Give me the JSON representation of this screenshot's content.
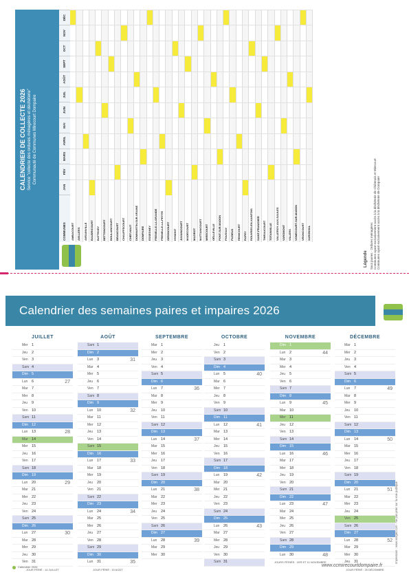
{
  "collecte": {
    "title": "CALENDRIER DE COLLECTE 2026",
    "subtitle": "Service \"collecte des ordures ménagères et déchèterie\"",
    "org": "Communauté de Communes Mirecourt Dompaire",
    "col_communes": "COMMUNES",
    "col_headers": [
      "JAN",
      "FÉV",
      "MARS",
      "AVRIL",
      "MAI",
      "JUIN",
      "JUIL",
      "AOÛT",
      "SEPT",
      "OCT",
      "NOV",
      "DÉC"
    ],
    "legend_title": "Légende",
    "legend_items": [
      "Sacs jaunes",
      "Ordures ménagères"
    ],
    "note1": "Communes ayant exclusivement accès à la déchèterie de Châtenois et Mirecourt",
    "note2": "Communes ayant exclusivement accès à la déchèterie de Dompaire",
    "communes": [
      "AMBACOURT",
      "AVILLERS",
      "AVRAINVILLE",
      "BAUDRICOURT",
      "BATTEXEY",
      "BETTONCOURT",
      "BOULAINCOURT",
      "BRANCOURT",
      "CHAUFFECOURT",
      "CHEF-HAUT",
      "DOMMARTIN-SUR-VRAINE",
      "DOMPAIRE",
      "ESSEGNEY",
      "FRENELLE-LA-GRANDE",
      "FRENELLE-LA-PETITE",
      "GIRONCOURT",
      "HYMONT",
      "JUVAINCOURT",
      "MADECOURT",
      "MAZIROT",
      "MATTAINCOURT",
      "MIRECOURT",
      "OËLLEVILLE",
      "PONT-SUR-MADON",
      "POUSSAY",
      "PUZIEUX",
      "REMICOURT",
      "RAPEY",
      "ROUVRES-EN-XAINTOIS",
      "SAINT-PRANCHER",
      "THIRAUCOURT",
      "TOTAINVILLE",
      "VALLEROY-AUX-SAULES",
      "VAROMONT",
      "VILLERS",
      "VOMECOURT-SUR-MADON",
      "VRONCOURT",
      "XARONVAL"
    ],
    "yellow_pattern": [
      3,
      7,
      11,
      2,
      9,
      5,
      1,
      10,
      6,
      4,
      8,
      0
    ]
  },
  "calendar": {
    "title": "Calendrier des semaines paires et impaires 2026",
    "months": [
      {
        "name": "JUILLET",
        "start": 3,
        "days": 31,
        "foot": "JOUR FÉRIÉ : 14 JUILLET"
      },
      {
        "name": "AOÛT",
        "start": 6,
        "days": 31,
        "foot": "JOUR FÉRIÉ : 15 AOÛT"
      },
      {
        "name": "SEPTEMBRE",
        "start": 2,
        "days": 30,
        "foot": ""
      },
      {
        "name": "OCTOBRE",
        "start": 4,
        "days": 31,
        "foot": ""
      },
      {
        "name": "NOVEMBRE",
        "start": 0,
        "days": 30,
        "foot": "JOURS FÉRIÉS : 1ER ET 11 NOVEMBRE"
      },
      {
        "name": "DÉCEMBRE",
        "start": 2,
        "days": 31,
        "foot": "JOUR FÉRIÉ : 25 DÉCEMBRE"
      }
    ],
    "holidays": {
      "JUILLET": [
        14
      ],
      "AOÛT": [
        15
      ],
      "NOVEMBRE": [
        1,
        11
      ],
      "DÉCEMBRE": [
        25
      ]
    },
    "day_abbr": [
      "D",
      "L",
      "M",
      "M",
      "J",
      "V",
      "S"
    ],
    "week_start_numbers": [
      27,
      31,
      36,
      40,
      44,
      49
    ]
  },
  "footer": {
    "left": "Calendrier 2026",
    "url": "www.ccmirecourtdompaire.fr",
    "credit": "Impression : www.vosges.com - Ne pas jeter sur la voie publique"
  },
  "colors": {
    "accent": "#3a86a6",
    "sunday": "#6fa0d6",
    "saturday": "#dcdff1",
    "holiday": "#a9d28a",
    "yellow": "#f6ea3a"
  }
}
